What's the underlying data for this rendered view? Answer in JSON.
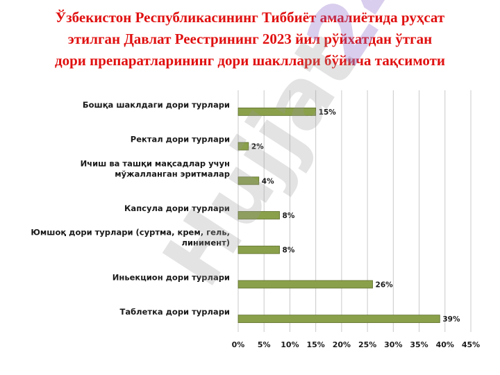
{
  "title": {
    "line1": "Ўзбекистон Республикасининг Тиббиёт амалиётида руҳсат",
    "line2": "этилган Давлат Реестрининг 2023 йил рўйхатдан ўтган",
    "line3": "дори препаратларининг дори шакллари бўйича тақсимоти"
  },
  "watermark": {
    "text_a": "Hujjat",
    "text_b": "24"
  },
  "colors": {
    "title": "#e01010",
    "bar": "#8aa04a",
    "bar_edge": "#5d6e2c",
    "grid": "#c8c8c8"
  },
  "chart_data": {
    "type": "bar",
    "orientation": "horizontal",
    "categories": [
      "Бошқа шаклдаги дори турлари",
      "Ректал дори турлари",
      "Ичиш ва ташқи мақсадлар учун\nмўжалланган эритмалар",
      "Капсула дори турлари",
      "Юмшоқ дори турлари (суртма, крем, гель,\nлинимент)",
      "Иньекцион дори турлари",
      "Таблетка дори турлари"
    ],
    "values": [
      15,
      2,
      4,
      8,
      8,
      26,
      39
    ],
    "value_labels": [
      "15%",
      "2%",
      "4%",
      "8%",
      "8%",
      "26%",
      "39%"
    ],
    "x_ticks": [
      "0%",
      "5%",
      "10%",
      "15%",
      "20%",
      "25%",
      "30%",
      "35%",
      "40%",
      "45%"
    ],
    "xlim": [
      0,
      45
    ],
    "grid": "vertical",
    "legend": "none"
  }
}
